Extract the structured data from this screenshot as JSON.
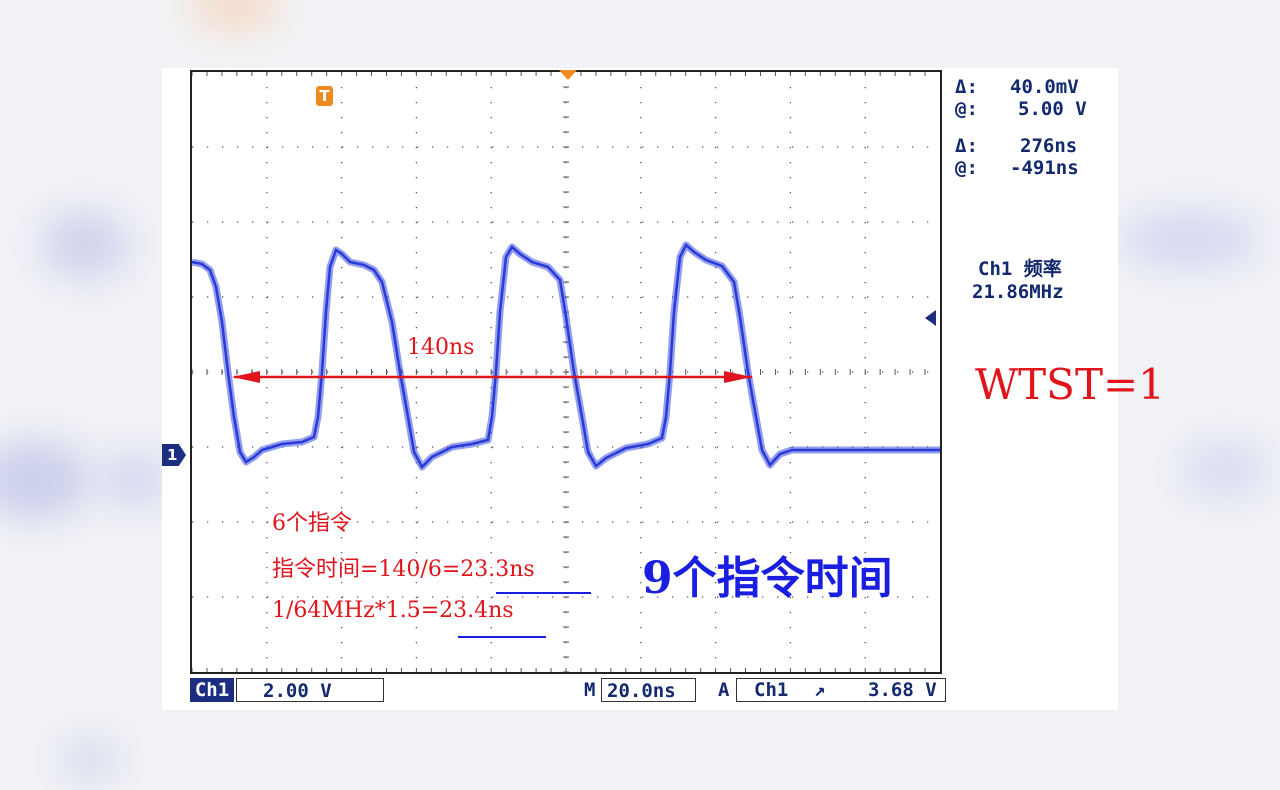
{
  "colors": {
    "trace": "#3a4fe0",
    "grid": "#555555",
    "annotation": "#e0141a",
    "accent": "#1a1ee0",
    "readout": "#142a6e"
  },
  "markers": {
    "trigger_label": "T",
    "channel_label": "1"
  },
  "cursor_readout": {
    "delta_v_label": "Δ:",
    "delta_v": "40.0mV",
    "at_v_label": "@:",
    "at_v": "5.00 V",
    "delta_t_label": "Δ:",
    "delta_t": "276ns",
    "at_t_label": "@:",
    "at_t": "-491ns"
  },
  "measurement": {
    "label": "Ch1 频率",
    "value": "21.86MHz"
  },
  "annotations": {
    "span": "140ns",
    "line1": "6个指令",
    "line2": "指令时间=140/6=23.3ns",
    "line3": "1/64MHz*1.5=23.4ns",
    "big": "9个指令时间",
    "wtst": "WTST=1"
  },
  "status_bar": {
    "channel": "Ch1",
    "volts_div": "2.00 V",
    "timebase_label": "M",
    "timebase": "20.0ns",
    "trigger_label": "A",
    "trigger_source": "Ch1",
    "trigger_slope": "↗",
    "trigger_level": "3.68 V"
  }
}
